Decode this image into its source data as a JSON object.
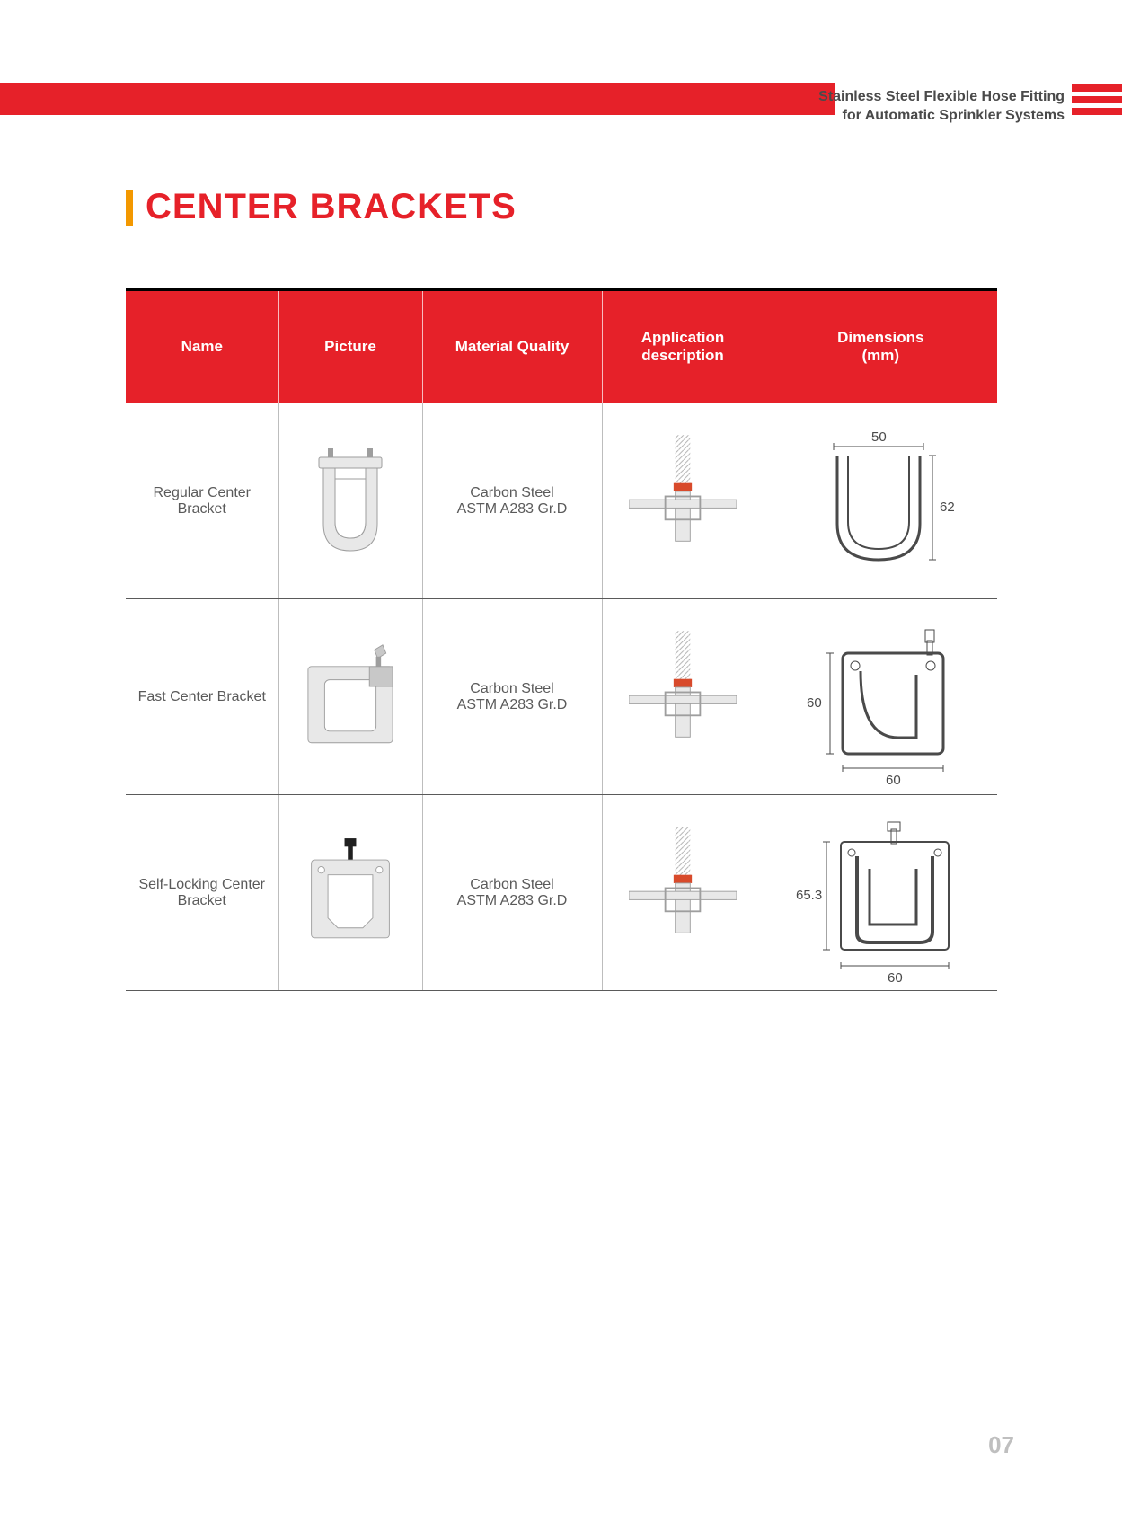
{
  "header": {
    "line1": "Stainless Steel Flexible Hose Fitting",
    "line2": "for Automatic Sprinkler Systems",
    "band_color": "#e62129",
    "stripe_color": "#e62129"
  },
  "title": {
    "text": "CENTER BRACKETS",
    "color": "#e62129",
    "accent_color": "#f39800"
  },
  "table": {
    "header_bg": "#e62129",
    "header_fg": "#ffffff",
    "columns": [
      {
        "key": "name",
        "label": "Name"
      },
      {
        "key": "picture",
        "label": "Picture"
      },
      {
        "key": "material",
        "label": "Material Quality"
      },
      {
        "key": "application",
        "label": "Application\ndescription"
      },
      {
        "key": "dimensions",
        "label": "Dimensions\n(mm)"
      }
    ],
    "rows": [
      {
        "name": "Regular Center Bracket",
        "material_line1": "Carbon Steel",
        "material_line2": "ASTM A283 Gr.D",
        "dim_width": "50",
        "dim_height": "62",
        "shape": "u"
      },
      {
        "name": "Fast Center Bracket",
        "material_line1": "Carbon Steel",
        "material_line2": "ASTM A283 Gr.D",
        "dim_width": "60",
        "dim_height": "60",
        "shape": "square-wing"
      },
      {
        "name": "Self-Locking Center\nBracket",
        "material_line1": "Carbon Steel",
        "material_line2": "ASTM A283 Gr.D",
        "dim_width": "60",
        "dim_height": "65.3",
        "shape": "square-bolt"
      }
    ]
  },
  "page_number": "07",
  "colors": {
    "text": "#4a4a4a",
    "border_dark": "#5a5a5a",
    "border_light": "#bdbdbd",
    "metal_light": "#e8e8e8",
    "metal_mid": "#c8c8c8",
    "metal_dark": "#9e9e9e",
    "diagram_stroke": "#4a4a4a"
  }
}
